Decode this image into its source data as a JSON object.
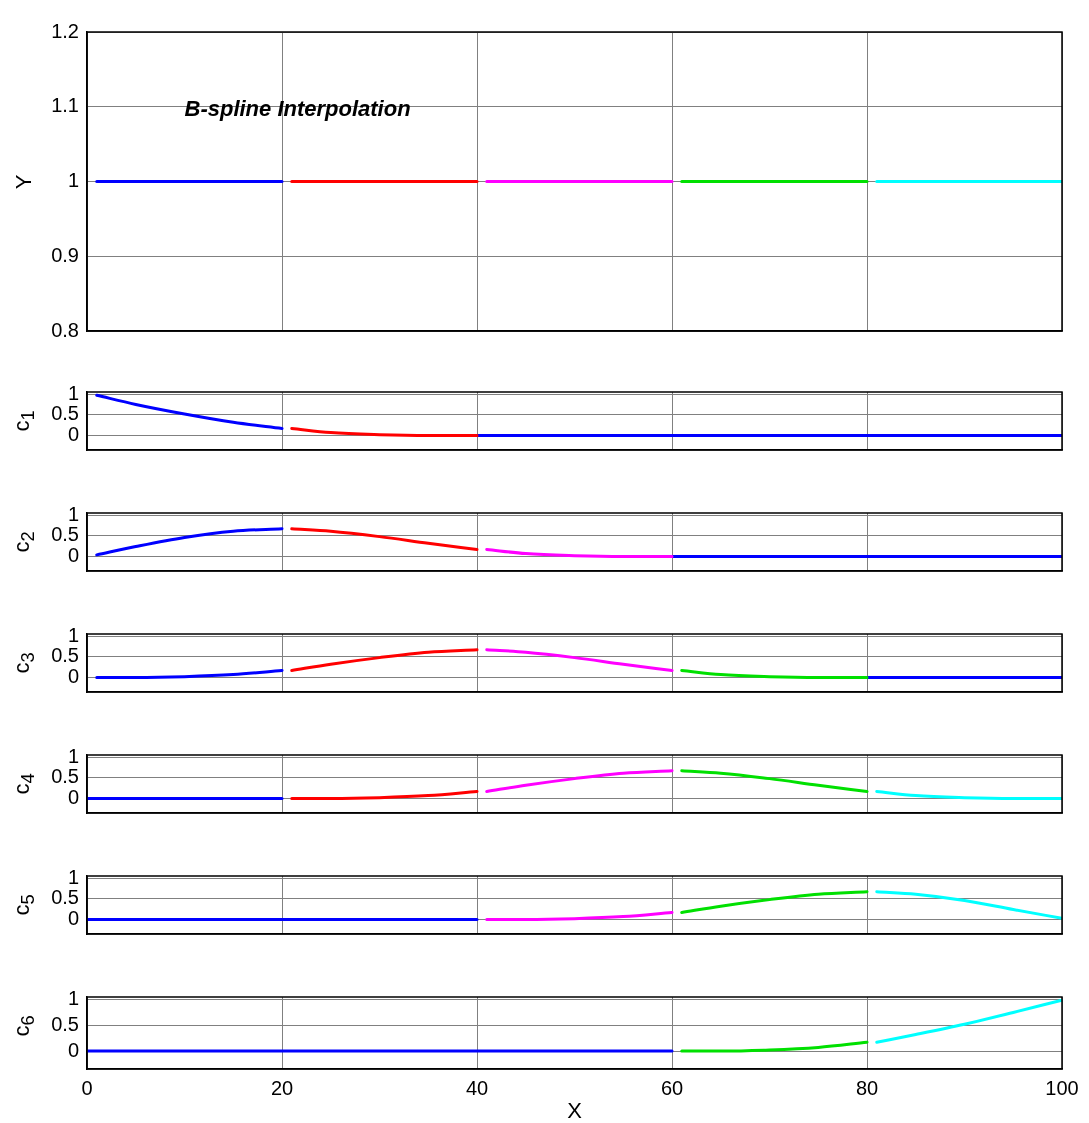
{
  "chart_data": [
    {
      "type": "line",
      "ylabel": "Y",
      "annotations": [
        "B-spline Interpolation"
      ],
      "xlim": [
        0,
        100
      ],
      "xticks": [
        0,
        20,
        40,
        60,
        80,
        100
      ],
      "ylim": [
        0.8,
        1.2
      ],
      "yticks": [
        0.8,
        0.9,
        1,
        1.1,
        1.2
      ],
      "grid": true,
      "tick_labels": "y",
      "series": [
        {
          "color": "#0000ff",
          "x": [
            1,
            20
          ],
          "values": [
            1,
            1
          ]
        },
        {
          "color": "#ff0000",
          "x": [
            21,
            40
          ],
          "values": [
            1,
            1
          ]
        },
        {
          "color": "#ff00ff",
          "x": [
            41,
            60
          ],
          "values": [
            1,
            1
          ]
        },
        {
          "color": "#00e000",
          "x": [
            61,
            80
          ],
          "values": [
            1,
            1
          ]
        },
        {
          "color": "#00ffff",
          "x": [
            81,
            100
          ],
          "values": [
            1,
            1
          ]
        }
      ]
    },
    {
      "type": "line",
      "ylabel": "c$_{1}$",
      "xlim": [
        0,
        100
      ],
      "xticks": [
        0,
        20,
        40,
        60,
        80,
        100
      ],
      "ylim": [
        -0.35,
        1.05
      ],
      "yticks": [
        0,
        0.5,
        1
      ],
      "grid": true,
      "tick_labels": "y",
      "series": [
        {
          "color": "#0000ff",
          "x": [
            1,
            5,
            10,
            15,
            20
          ],
          "values": [
            0.97,
            0.75,
            0.52,
            0.32,
            0.17
          ]
        },
        {
          "color": "#ff0000",
          "x": [
            21,
            25,
            30,
            35,
            40
          ],
          "values": [
            0.17,
            0.07,
            0.02,
            0,
            0
          ]
        },
        {
          "color": "#0000ff",
          "x": [
            40,
            100
          ],
          "values": [
            0,
            0
          ]
        }
      ]
    },
    {
      "type": "line",
      "ylabel": "c$_{2}$",
      "xlim": [
        0,
        100
      ],
      "xticks": [
        0,
        20,
        40,
        60,
        80,
        100
      ],
      "ylim": [
        -0.35,
        1.05
      ],
      "yticks": [
        0,
        0.5,
        1
      ],
      "grid": true,
      "tick_labels": "y",
      "series": [
        {
          "color": "#0000ff",
          "x": [
            1,
            5,
            10,
            15,
            20
          ],
          "values": [
            0.04,
            0.24,
            0.46,
            0.61,
            0.67
          ]
        },
        {
          "color": "#ff0000",
          "x": [
            21,
            25,
            30,
            35,
            40
          ],
          "values": [
            0.67,
            0.61,
            0.48,
            0.32,
            0.17
          ]
        },
        {
          "color": "#ff00ff",
          "x": [
            41,
            45,
            50,
            55,
            60
          ],
          "values": [
            0.17,
            0.07,
            0.02,
            0,
            0
          ]
        },
        {
          "color": "#0000ff",
          "x": [
            60,
            100
          ],
          "values": [
            0,
            0
          ]
        }
      ]
    },
    {
      "type": "line",
      "ylabel": "c$_{3}$",
      "xlim": [
        0,
        100
      ],
      "xticks": [
        0,
        20,
        40,
        60,
        80,
        100
      ],
      "ylim": [
        -0.35,
        1.05
      ],
      "yticks": [
        0,
        0.5,
        1
      ],
      "grid": true,
      "tick_labels": "y",
      "series": [
        {
          "color": "#0000ff",
          "x": [
            1,
            5,
            10,
            15,
            20
          ],
          "values": [
            0,
            0,
            0.02,
            0.07,
            0.17
          ]
        },
        {
          "color": "#ff0000",
          "x": [
            21,
            25,
            30,
            35,
            40
          ],
          "values": [
            0.17,
            0.32,
            0.48,
            0.61,
            0.67
          ]
        },
        {
          "color": "#ff00ff",
          "x": [
            41,
            45,
            50,
            55,
            60
          ],
          "values": [
            0.67,
            0.61,
            0.48,
            0.32,
            0.17
          ]
        },
        {
          "color": "#00e000",
          "x": [
            61,
            65,
            70,
            75,
            80
          ],
          "values": [
            0.17,
            0.07,
            0.02,
            0,
            0
          ]
        },
        {
          "color": "#0000ff",
          "x": [
            80,
            100
          ],
          "values": [
            0,
            0
          ]
        }
      ]
    },
    {
      "type": "line",
      "ylabel": "c$_{4}$",
      "xlim": [
        0,
        100
      ],
      "xticks": [
        0,
        20,
        40,
        60,
        80,
        100
      ],
      "ylim": [
        -0.35,
        1.05
      ],
      "yticks": [
        0,
        0.5,
        1
      ],
      "grid": true,
      "tick_labels": "y",
      "series": [
        {
          "color": "#0000ff",
          "x": [
            0,
            20
          ],
          "values": [
            0,
            0
          ]
        },
        {
          "color": "#ff0000",
          "x": [
            21,
            25,
            30,
            35,
            40
          ],
          "values": [
            0,
            0,
            0.02,
            0.07,
            0.17
          ]
        },
        {
          "color": "#ff00ff",
          "x": [
            41,
            45,
            50,
            55,
            60
          ],
          "values": [
            0.17,
            0.32,
            0.48,
            0.61,
            0.67
          ]
        },
        {
          "color": "#00e000",
          "x": [
            61,
            65,
            70,
            75,
            80
          ],
          "values": [
            0.67,
            0.61,
            0.48,
            0.32,
            0.17
          ]
        },
        {
          "color": "#00ffff",
          "x": [
            81,
            85,
            90,
            95,
            100
          ],
          "values": [
            0.17,
            0.07,
            0.02,
            0,
            0
          ]
        }
      ]
    },
    {
      "type": "line",
      "ylabel": "c$_{5}$",
      "xlim": [
        0,
        100
      ],
      "xticks": [
        0,
        20,
        40,
        60,
        80,
        100
      ],
      "ylim": [
        -0.35,
        1.05
      ],
      "yticks": [
        0,
        0.5,
        1
      ],
      "grid": true,
      "tick_labels": "y",
      "series": [
        {
          "color": "#0000ff",
          "x": [
            0,
            40
          ],
          "values": [
            0,
            0
          ]
        },
        {
          "color": "#ff00ff",
          "x": [
            41,
            45,
            50,
            55,
            60
          ],
          "values": [
            0,
            0,
            0.02,
            0.07,
            0.17
          ]
        },
        {
          "color": "#00e000",
          "x": [
            61,
            65,
            70,
            75,
            80
          ],
          "values": [
            0.17,
            0.32,
            0.48,
            0.61,
            0.67
          ]
        },
        {
          "color": "#00ffff",
          "x": [
            81,
            85,
            90,
            95,
            100
          ],
          "values": [
            0.67,
            0.61,
            0.46,
            0.24,
            0.03
          ]
        }
      ]
    },
    {
      "type": "line",
      "ylabel": "c$_{6}$",
      "xlabel": "X",
      "xlim": [
        0,
        100
      ],
      "xticks": [
        0,
        20,
        40,
        60,
        80,
        100
      ],
      "ylim": [
        -0.35,
        1.05
      ],
      "yticks": [
        0,
        0.5,
        1
      ],
      "grid": true,
      "series": [
        {
          "color": "#0000ff",
          "x": [
            0,
            60
          ],
          "values": [
            0,
            0
          ]
        },
        {
          "color": "#00e000",
          "x": [
            61,
            65,
            70,
            75,
            80
          ],
          "values": [
            0,
            0,
            0.02,
            0.07,
            0.17
          ]
        },
        {
          "color": "#00ffff",
          "x": [
            81,
            85,
            90,
            95,
            100
          ],
          "values": [
            0.17,
            0.32,
            0.52,
            0.75,
            0.99
          ]
        }
      ]
    }
  ]
}
